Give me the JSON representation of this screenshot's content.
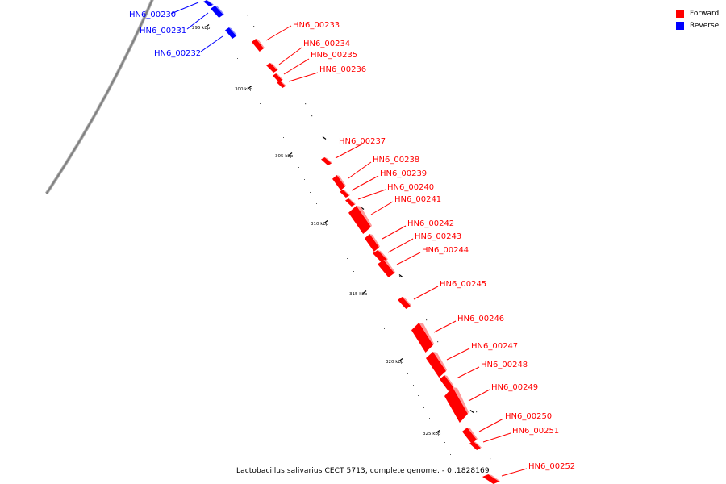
{
  "caption": "Lactobacillus salivarius CECT 5713, complete genome. - 0..1828169",
  "legend": [
    {
      "label": "Forward",
      "color": "#ff0000"
    },
    {
      "label": "Reverse",
      "color": "#0000ff"
    }
  ],
  "colors": {
    "forward": "#ff0000",
    "reverse": "#0000ff",
    "backbone": "#888888"
  },
  "tick_labels": [
    "295 kbp",
    "300 kbp",
    "305 kbp",
    "310 kbp",
    "315 kbp",
    "320 kbp",
    "325 kbp"
  ],
  "genes": [
    {
      "name": "HN6_00230",
      "strand": "reverse"
    },
    {
      "name": "HN6_00231",
      "strand": "reverse"
    },
    {
      "name": "HN6_00232",
      "strand": "reverse"
    },
    {
      "name": "HN6_00233",
      "strand": "forward"
    },
    {
      "name": "HN6_00234",
      "strand": "forward"
    },
    {
      "name": "HN6_00235",
      "strand": "forward"
    },
    {
      "name": "HN6_00236",
      "strand": "forward"
    },
    {
      "name": "HN6_00237",
      "strand": "forward"
    },
    {
      "name": "HN6_00238",
      "strand": "forward"
    },
    {
      "name": "HN6_00239",
      "strand": "forward"
    },
    {
      "name": "HN6_00240",
      "strand": "forward"
    },
    {
      "name": "HN6_00241",
      "strand": "forward"
    },
    {
      "name": "HN6_00242",
      "strand": "forward"
    },
    {
      "name": "HN6_00243",
      "strand": "forward"
    },
    {
      "name": "HN6_00244",
      "strand": "forward"
    },
    {
      "name": "HN6_00245",
      "strand": "forward"
    },
    {
      "name": "HN6_00246",
      "strand": "forward"
    },
    {
      "name": "HN6_00247",
      "strand": "forward"
    },
    {
      "name": "HN6_00248",
      "strand": "forward"
    },
    {
      "name": "HN6_00249",
      "strand": "forward"
    },
    {
      "name": "HN6_00250",
      "strand": "forward"
    },
    {
      "name": "HN6_00251",
      "strand": "forward"
    },
    {
      "name": "HN6_00252",
      "strand": "forward"
    }
  ]
}
